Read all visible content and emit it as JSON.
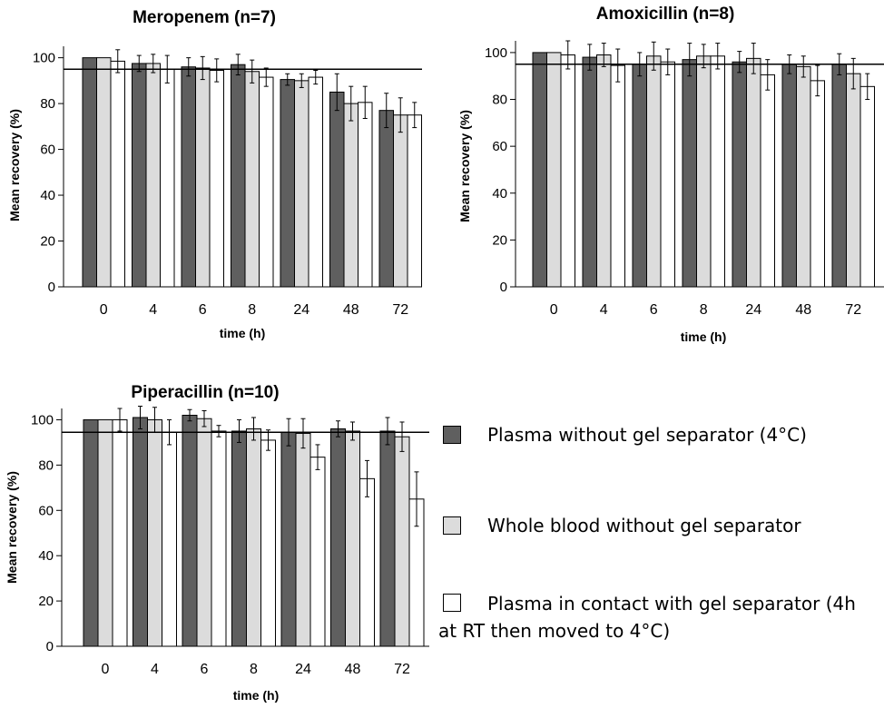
{
  "chart_data": [
    {
      "type": "bar",
      "title": "Meropenem (n=7)",
      "xlabel": "time (h)",
      "ylabel": "Mean recovery (%)",
      "ylim": [
        0,
        105
      ],
      "yticks": [
        0,
        20,
        40,
        60,
        80,
        100
      ],
      "reference_line": 95,
      "categories": [
        "0",
        "4",
        "6",
        "8",
        "24",
        "48",
        "72"
      ],
      "series": [
        {
          "values": [
            100,
            97.5,
            96,
            97,
            90.5,
            85,
            77
          ],
          "errors": [
            0,
            3.5,
            4,
            4.5,
            2.5,
            8,
            7.5
          ]
        },
        {
          "values": [
            100,
            97.5,
            95.5,
            94,
            90,
            80,
            75
          ],
          "errors": [
            0,
            4,
            5,
            5,
            3,
            7.5,
            7.5
          ]
        },
        {
          "values": [
            98.5,
            95,
            94.5,
            91.5,
            91.5,
            80.5,
            75
          ],
          "errors": [
            5,
            6,
            5,
            4,
            3,
            7,
            5.5
          ]
        }
      ]
    },
    {
      "type": "bar",
      "title": "Amoxicillin (n=8)",
      "xlabel": "time (h)",
      "ylabel": "Mean recovery (%)",
      "ylim": [
        0,
        105
      ],
      "yticks": [
        0,
        20,
        40,
        60,
        80,
        100
      ],
      "reference_line": 95,
      "categories": [
        "0",
        "4",
        "6",
        "8",
        "24",
        "48",
        "72"
      ],
      "series": [
        {
          "values": [
            100,
            98,
            95,
            97,
            96,
            95,
            95
          ],
          "errors": [
            0,
            5.5,
            5,
            7,
            4.5,
            4,
            4.5
          ]
        },
        {
          "values": [
            100,
            99,
            98.5,
            98.5,
            97.5,
            94,
            91
          ],
          "errors": [
            0,
            5,
            6,
            5,
            6.5,
            4.5,
            6.5
          ]
        },
        {
          "values": [
            99,
            94.5,
            96,
            98.5,
            90.5,
            88,
            85.5
          ],
          "errors": [
            6,
            7,
            5.5,
            5.5,
            6.5,
            6.5,
            5.5
          ]
        }
      ]
    },
    {
      "type": "bar",
      "title": "Piperacillin (n=10)",
      "xlabel": "time (h)",
      "ylabel": "Mean recovery (%)",
      "ylim": [
        0,
        105
      ],
      "yticks": [
        0,
        20,
        40,
        60,
        80,
        100
      ],
      "reference_line": 94.5,
      "categories": [
        "0",
        "4",
        "6",
        "8",
        "24",
        "48",
        "72"
      ],
      "series": [
        {
          "values": [
            100,
            101,
            102,
            95,
            94.5,
            96,
            95
          ],
          "errors": [
            0,
            5,
            2.5,
            5,
            6,
            3.5,
            6
          ]
        },
        {
          "values": [
            100,
            100,
            100.5,
            96,
            94,
            95,
            92.5
          ],
          "errors": [
            0,
            5.5,
            3.5,
            5,
            6.5,
            4,
            6.5
          ]
        },
        {
          "values": [
            100,
            94.5,
            95,
            91,
            83.5,
            74,
            65
          ],
          "errors": [
            5,
            5.5,
            2.5,
            4.5,
            5.5,
            8,
            12
          ]
        }
      ]
    }
  ],
  "legend": [
    {
      "label": "Plasma without gel separator (4°C)",
      "color": "#5f5f5f"
    },
    {
      "label": "Whole blood without gel separator",
      "color": "#dcdcdc"
    },
    {
      "label_line1": "Plasma in contact with gel separator (4h",
      "label_line2": "at RT then moved to 4°C)",
      "color": "#ffffff"
    }
  ],
  "series_colors": [
    "#5f5f5f",
    "#dcdcdc",
    "#ffffff"
  ]
}
